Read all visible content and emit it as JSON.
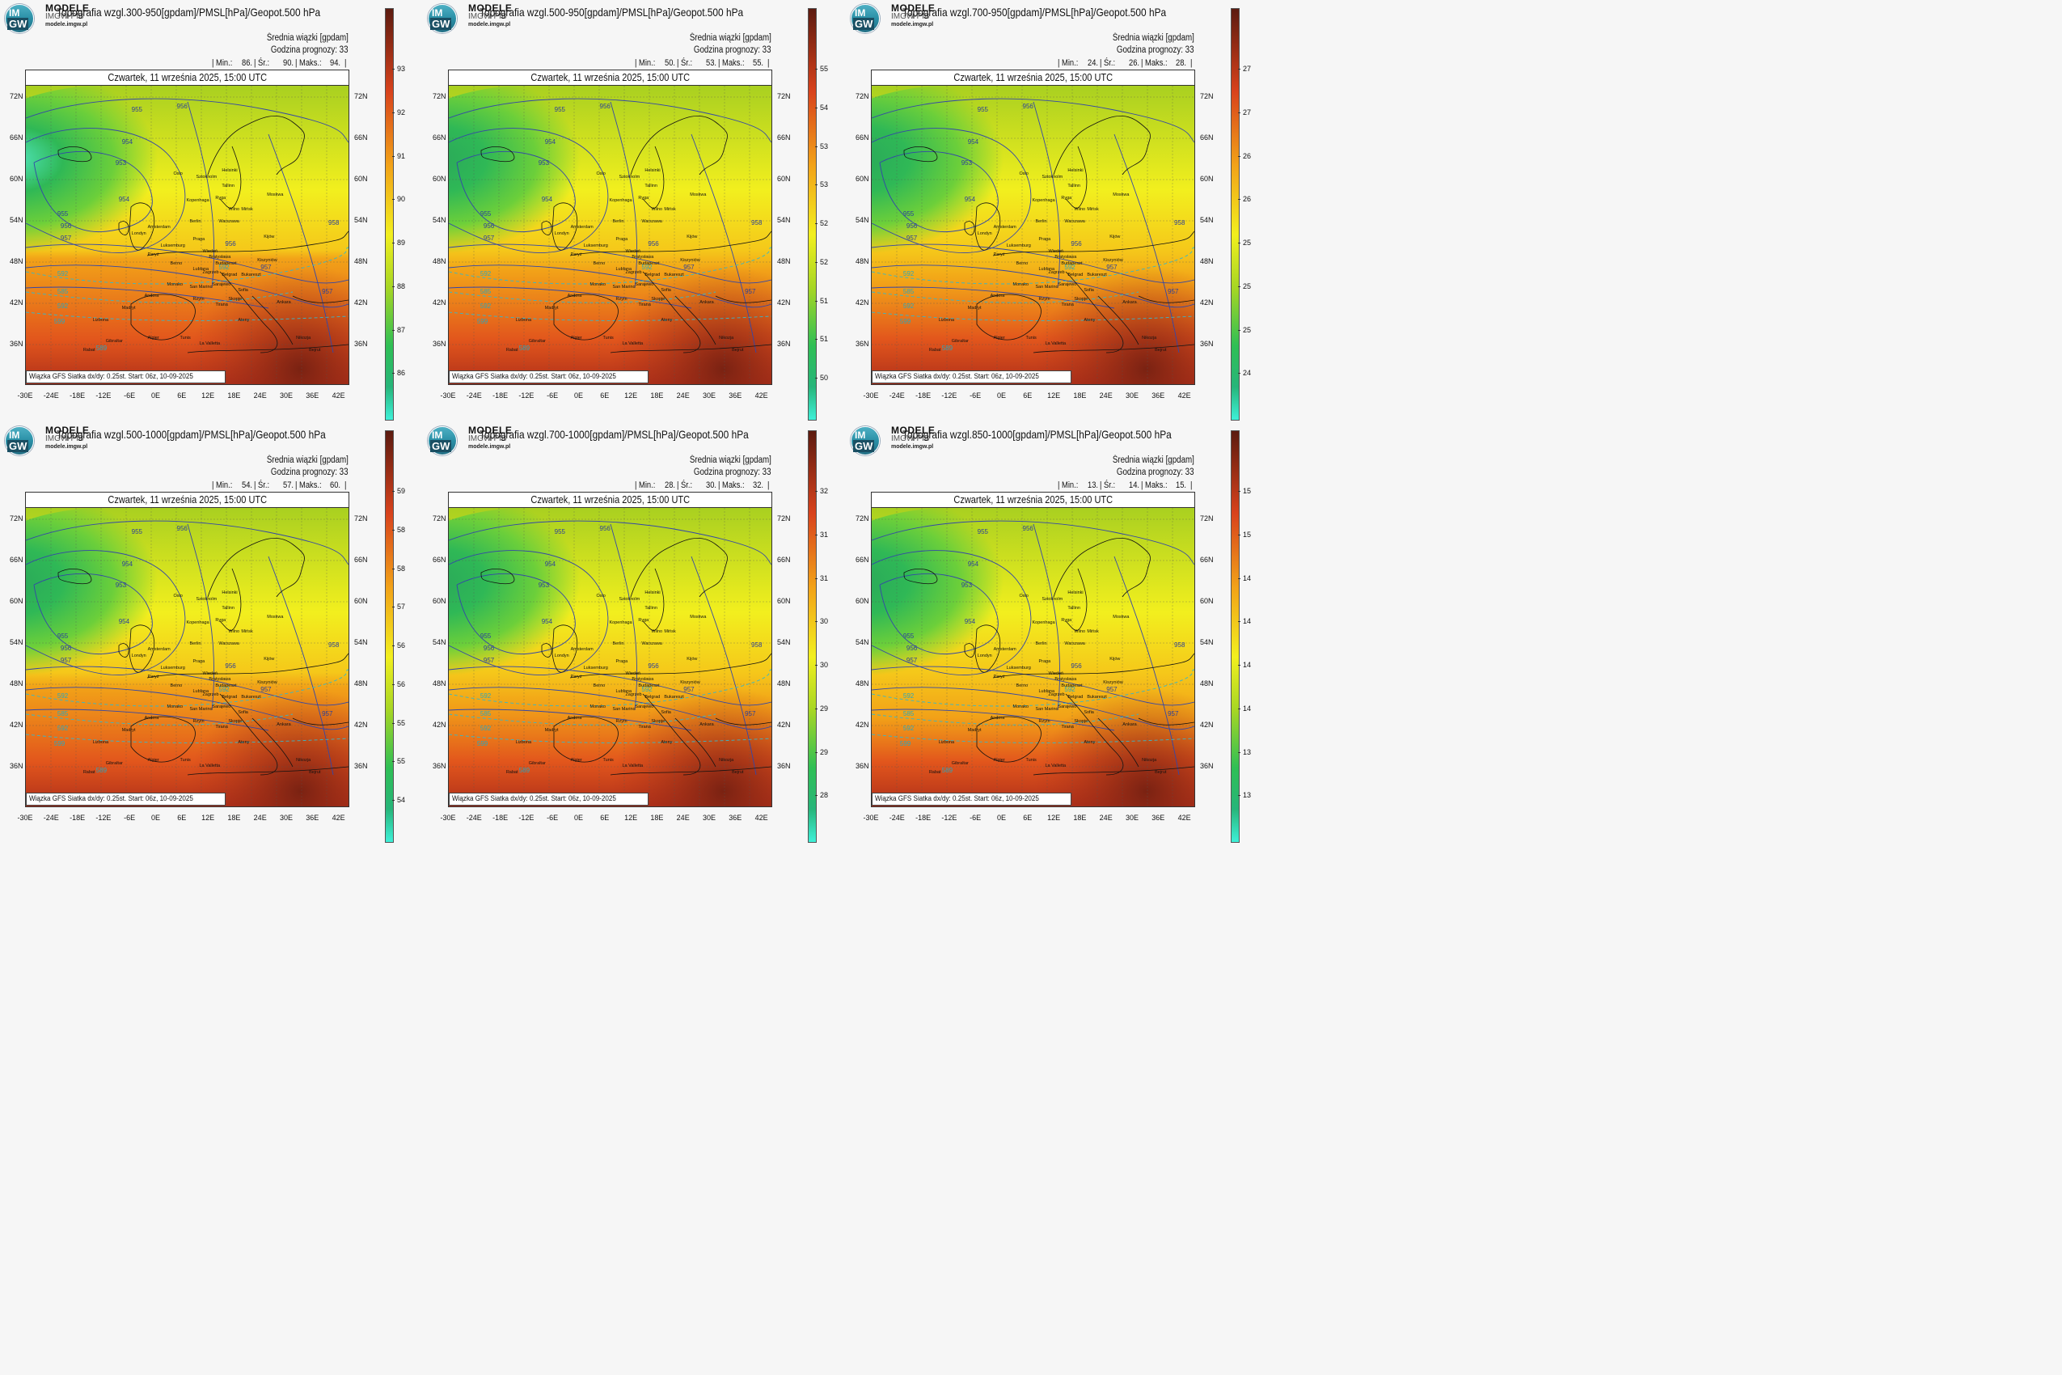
{
  "brand": {
    "name": "MODELE",
    "org": "IMGW-PIB",
    "url": "modele.imgw.pl",
    "logo_top": "IM",
    "logo_bottom": "GW"
  },
  "common": {
    "subtitle": "Średnia wiązki [gpdam]",
    "forecast": "Godzina prognozy: 33",
    "date": "Czwartek, 11 września 2025, 15:00 UTC",
    "footer": "Wiązka GFS Siatka dx/dy: 0.25st. Start: 06z, 10-09-2025",
    "lat_labels": [
      "72N",
      "66N",
      "60N",
      "54N",
      "48N",
      "42N",
      "36N"
    ],
    "lon_labels": [
      "-30E",
      "-24E",
      "-18E",
      "-12E",
      "-6E",
      "0E",
      "6E",
      "12E",
      "18E",
      "24E",
      "30E",
      "36E",
      "42E"
    ],
    "isobars": [
      "955",
      "956",
      "954",
      "953",
      "954",
      "955",
      "956",
      "957",
      "956",
      "957",
      "958",
      "957"
    ],
    "geopot": [
      "592",
      "585",
      "592",
      "599",
      "589",
      "592"
    ],
    "cities": [
      "Oslo",
      "Sztokholm",
      "Helsinki",
      "Tallinn",
      "Ryga",
      "Kopenhaga",
      "Wilno",
      "Moskwa",
      "Berlin",
      "Warszawa",
      "Mińsk",
      "Amsterdam",
      "Londyn",
      "Praga",
      "Kijów",
      "Luksemburg",
      "Paryż",
      "Wiedeń",
      "Bratysława",
      "Budapeszt",
      "Kiszyniów",
      "Berno",
      "Lublana",
      "Zagrzeb",
      "Belgrad",
      "Bukareszt",
      "Monako",
      "Sarajewo",
      "San Marino",
      "Sofia",
      "Andora",
      "Rzym",
      "Skopje",
      "Tirana",
      "Ankara",
      "Madryt",
      "Ateny",
      "Lizbona",
      "Algier",
      "Tunis",
      "La Valletta",
      "Nikozja",
      "Gibraltar",
      "Rabat",
      "Bejrut"
    ]
  },
  "panels": [
    {
      "title": "Topografia wzgl.300-950[gpdam]/PMSL[hPa]/Geopot.500 hPa",
      "min": "86.",
      "avg": "90.",
      "max": "94.",
      "cbar": [
        "93",
        "92",
        "91",
        "90",
        "89",
        "88",
        "87",
        "86"
      ]
    },
    {
      "title": "Topografia wzgl.500-950[gpdam]/PMSL[hPa]/Geopot.500 hPa",
      "min": "50.",
      "avg": "53.",
      "max": "55.",
      "cbar": [
        "55",
        "54",
        "53",
        "53",
        "52",
        "52",
        "51",
        "51",
        "50"
      ]
    },
    {
      "title": "Topografia wzgl.700-950[gpdam]/PMSL[hPa]/Geopot.500 hPa",
      "min": "24.",
      "avg": "26.",
      "max": "28.",
      "cbar": [
        "27",
        "27",
        "26",
        "26",
        "25",
        "25",
        "25",
        "24"
      ]
    },
    {
      "title": "Topografia wzgl.500-1000[gpdam]/PMSL[hPa]/Geopot.500 hPa",
      "min": "54.",
      "avg": "57.",
      "max": "60.",
      "cbar": [
        "59",
        "58",
        "58",
        "57",
        "56",
        "56",
        "55",
        "55",
        "54"
      ]
    },
    {
      "title": "Topografia wzgl.700-1000[gpdam]/PMSL[hPa]/Geopot.500 hPa",
      "min": "28.",
      "avg": "30.",
      "max": "32.",
      "cbar": [
        "32",
        "31",
        "31",
        "30",
        "30",
        "29",
        "29",
        "28"
      ]
    },
    {
      "title": "Topografia wzgl.850-1000[gpdam]/PMSL[hPa]/Geopot.500 hPa",
      "min": "13.",
      "avg": "14.",
      "max": "15.",
      "cbar": [
        "15",
        "15",
        "14",
        "14",
        "14",
        "14",
        "13",
        "13"
      ]
    }
  ],
  "labels": {
    "min": "| Min.:",
    "avg": "| Śr.:",
    "max": "| Maks.:",
    "end": "|"
  },
  "colors": {
    "cyan": "#3ef0d8",
    "green": "#2fbf55",
    "yellow": "#f2ef1e",
    "orange": "#f2a218",
    "red": "#d8421c",
    "darkred": "#5c1b10"
  }
}
